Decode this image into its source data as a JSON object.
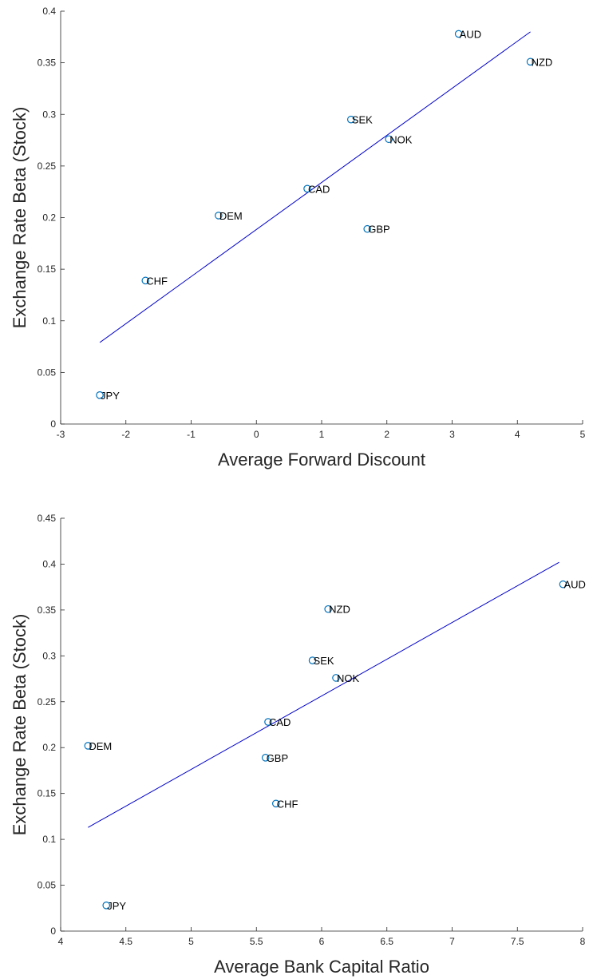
{
  "chart_data": [
    {
      "type": "scatter",
      "xlabel": "Average Forward Discount",
      "ylabel": "Exchange Rate Beta (Stock)",
      "xlim": [
        -3,
        5
      ],
      "ylim": [
        0,
        0.4
      ],
      "xticks": [
        -3,
        -2,
        -1,
        0,
        1,
        2,
        3,
        4,
        5
      ],
      "yticks": [
        0,
        0.05,
        0.1,
        0.15,
        0.2,
        0.25,
        0.3,
        0.35,
        0.4
      ],
      "xtick_labels": [
        "-3",
        "-2",
        "-1",
        "0",
        "1",
        "2",
        "3",
        "4",
        "5"
      ],
      "ytick_labels": [
        "0",
        "0.05",
        "0.1",
        "0.15",
        "0.2",
        "0.25",
        "0.3",
        "0.35",
        "0.4"
      ],
      "grid": false,
      "marker_color": "#0072bd",
      "fit_color": "#0000cc",
      "points": [
        {
          "label": "AUD",
          "x": 3.1,
          "y": 0.378
        },
        {
          "label": "NZD",
          "x": 4.2,
          "y": 0.351
        },
        {
          "label": "SEK",
          "x": 1.45,
          "y": 0.295
        },
        {
          "label": "NOK",
          "x": 2.03,
          "y": 0.276
        },
        {
          "label": "CAD",
          "x": 0.78,
          "y": 0.228
        },
        {
          "label": "DEM",
          "x": -0.58,
          "y": 0.202
        },
        {
          "label": "GBP",
          "x": 1.7,
          "y": 0.189
        },
        {
          "label": "CHF",
          "x": -1.7,
          "y": 0.139
        },
        {
          "label": "JPY",
          "x": -2.4,
          "y": 0.028
        }
      ],
      "fit_line": {
        "x": [
          -2.4,
          4.2
        ],
        "y": [
          0.079,
          0.38
        ]
      }
    },
    {
      "type": "scatter",
      "xlabel": "Average Bank Capital Ratio",
      "ylabel": "Exchange Rate Beta (Stock)",
      "xlim": [
        4,
        8
      ],
      "ylim": [
        0,
        0.45
      ],
      "xticks": [
        4,
        4.5,
        5,
        5.5,
        6,
        6.5,
        7,
        7.5,
        8
      ],
      "yticks": [
        0,
        0.05,
        0.1,
        0.15,
        0.2,
        0.25,
        0.3,
        0.35,
        0.4,
        0.45
      ],
      "xtick_labels": [
        "4",
        "4.5",
        "5",
        "5.5",
        "6",
        "6.5",
        "7",
        "7.5",
        "8"
      ],
      "ytick_labels": [
        "0",
        "0.05",
        "0.1",
        "0.15",
        "0.2",
        "0.25",
        "0.3",
        "0.35",
        "0.4",
        "0.45"
      ],
      "grid": false,
      "marker_color": "#0072bd",
      "fit_color": "#0000cc",
      "points": [
        {
          "label": "AUD",
          "x": 7.85,
          "y": 0.378
        },
        {
          "label": "NZD",
          "x": 6.05,
          "y": 0.351
        },
        {
          "label": "SEK",
          "x": 5.93,
          "y": 0.295
        },
        {
          "label": "NOK",
          "x": 6.11,
          "y": 0.276
        },
        {
          "label": "CAD",
          "x": 5.59,
          "y": 0.228
        },
        {
          "label": "DEM",
          "x": 4.21,
          "y": 0.202
        },
        {
          "label": "GBP",
          "x": 5.57,
          "y": 0.189
        },
        {
          "label": "CHF",
          "x": 5.65,
          "y": 0.139
        },
        {
          "label": "JPY",
          "x": 4.35,
          "y": 0.028
        }
      ],
      "fit_line": {
        "x": [
          4.21,
          7.82
        ],
        "y": [
          0.113,
          0.402
        ]
      }
    }
  ]
}
